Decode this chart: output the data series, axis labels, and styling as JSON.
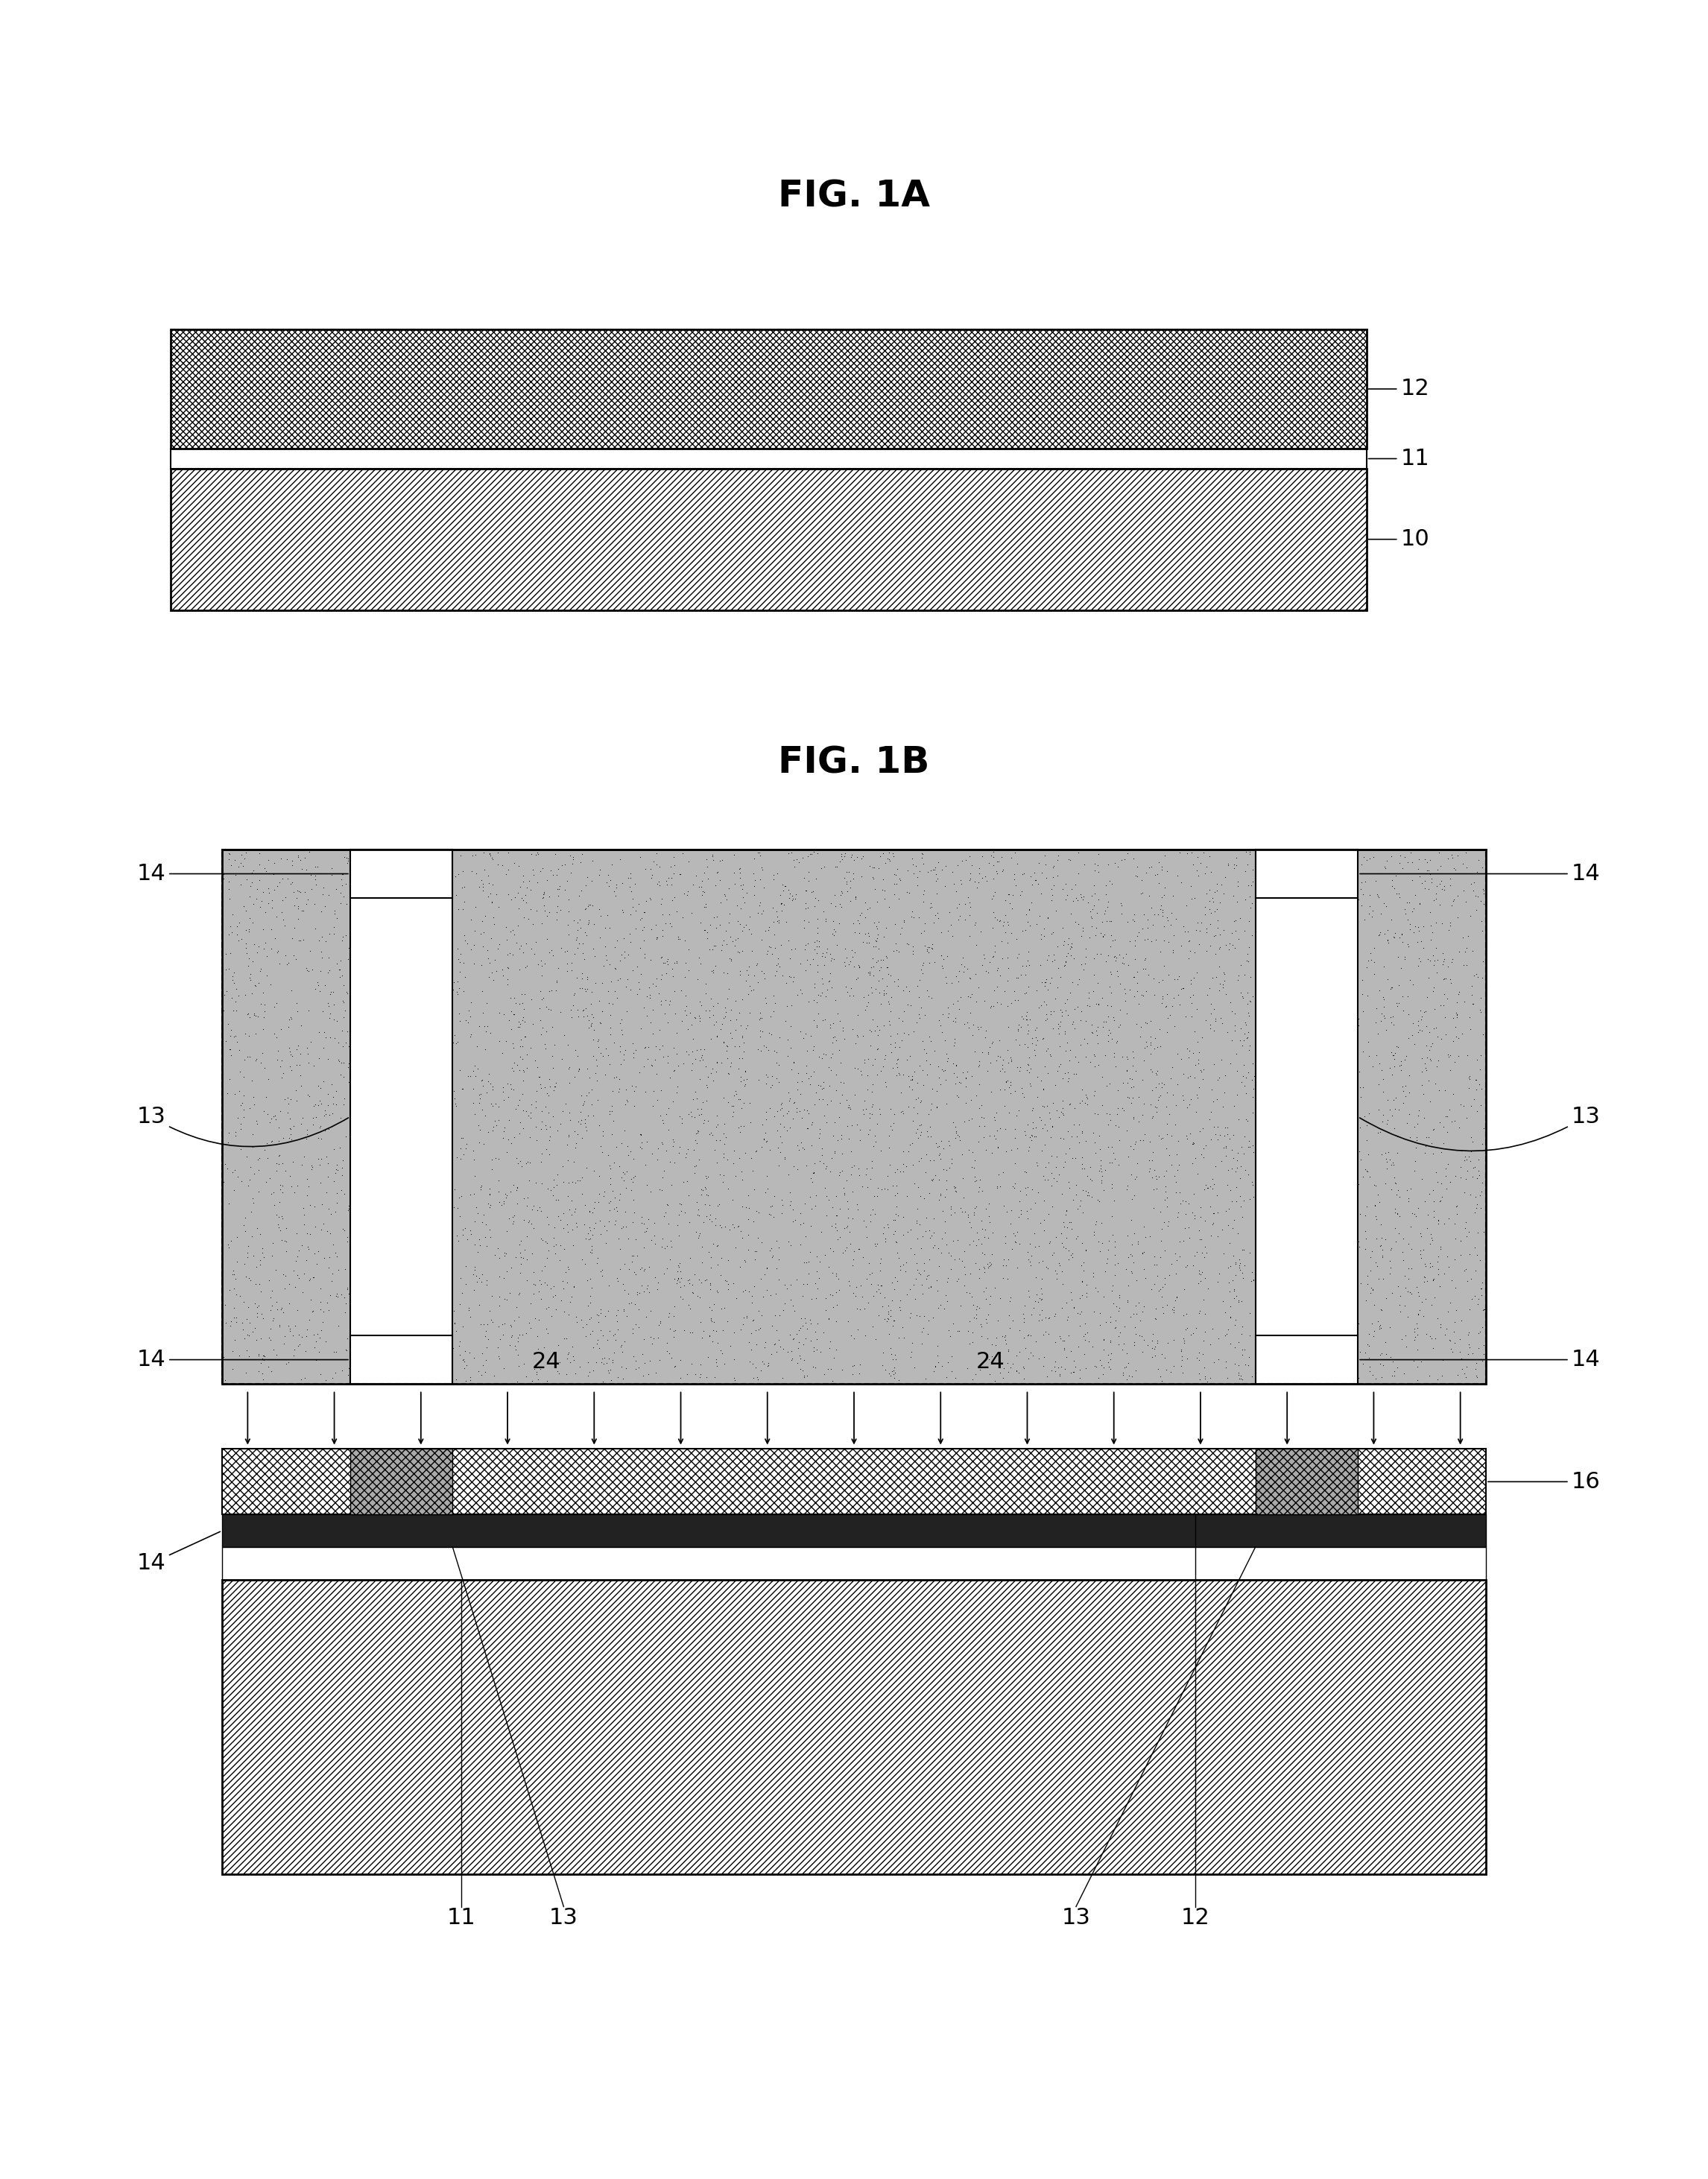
{
  "bg_color": "#ffffff",
  "fig_width": 22.92,
  "fig_height": 29.24,
  "fig1a_title": "FIG. 1A",
  "fig1b_title": "FIG. 1B",
  "label_12": "12",
  "label_11": "11",
  "label_10": "10",
  "label_13": "13",
  "label_14": "14",
  "label_16": "16",
  "label_24": "24",
  "font_size_title": 36,
  "font_size_label": 22,
  "stipple_n": 8000
}
